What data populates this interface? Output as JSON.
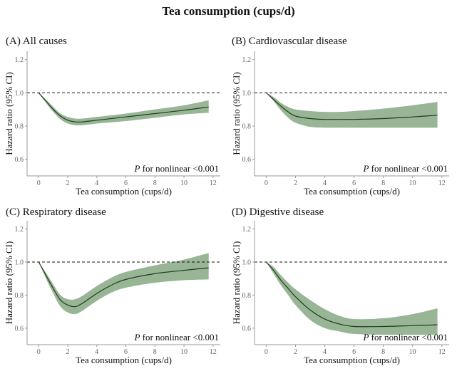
{
  "chart_data": {
    "title": "Tea consumption (cups/d)",
    "panels": [
      {
        "type": "line",
        "title": "(A) All causes",
        "xlabel": "Tea consumption (cups/d)",
        "ylabel": "Hazard ratio (95% CI)",
        "annotation": {
          "italic": "P",
          "rest": " for nonlinear <0.001"
        },
        "xlim": [
          -0.8,
          12.5
        ],
        "ylim": [
          0.5,
          1.25
        ],
        "xticks": [
          0,
          2,
          4,
          6,
          8,
          10,
          12
        ],
        "yticks": [
          0.6,
          0.8,
          1.0,
          1.2
        ],
        "ytick_labels": [
          "0.6",
          "0.8",
          "1.0",
          "1.2"
        ],
        "reference_line": 1.0,
        "x": [
          0,
          0.5,
          1,
          1.5,
          2,
          2.5,
          3,
          4,
          6,
          8,
          10,
          11.7
        ],
        "y": [
          1.0,
          0.95,
          0.9,
          0.86,
          0.835,
          0.825,
          0.825,
          0.835,
          0.855,
          0.875,
          0.895,
          0.915
        ],
        "lower": [
          1.0,
          0.94,
          0.885,
          0.84,
          0.815,
          0.805,
          0.805,
          0.815,
          0.83,
          0.85,
          0.87,
          0.88
        ],
        "upper": [
          1.0,
          0.96,
          0.915,
          0.875,
          0.855,
          0.845,
          0.845,
          0.855,
          0.875,
          0.9,
          0.925,
          0.955
        ]
      },
      {
        "type": "line",
        "title": "(B) Cardiovascular disease",
        "xlabel": "Tea consumption (cups/d)",
        "ylabel": "Hazard ratio (95% CI)",
        "annotation": {
          "italic": "P",
          "rest": " for nonlinear <0.001"
        },
        "xlim": [
          -0.8,
          12.5
        ],
        "ylim": [
          0.5,
          1.25
        ],
        "xticks": [
          0,
          2,
          4,
          6,
          8,
          10,
          12
        ],
        "yticks": [
          0.6,
          0.8,
          1.0,
          1.2
        ],
        "ytick_labels": [
          "0.6",
          "0.8",
          "1.0",
          "1.2"
        ],
        "reference_line": 1.0,
        "x": [
          0,
          0.5,
          1,
          1.5,
          2,
          3,
          4,
          5,
          6,
          8,
          10,
          11.7
        ],
        "y": [
          1.0,
          0.96,
          0.92,
          0.885,
          0.86,
          0.845,
          0.84,
          0.84,
          0.84,
          0.845,
          0.855,
          0.865
        ],
        "lower": [
          1.0,
          0.95,
          0.895,
          0.85,
          0.82,
          0.795,
          0.79,
          0.79,
          0.79,
          0.79,
          0.79,
          0.79
        ],
        "upper": [
          1.0,
          0.975,
          0.94,
          0.915,
          0.9,
          0.89,
          0.885,
          0.885,
          0.89,
          0.905,
          0.925,
          0.945
        ]
      },
      {
        "type": "line",
        "title": "(C) Respiratory disease",
        "xlabel": "Tea consumption (cups/d)",
        "ylabel": "Hazard ratio (95% CI)",
        "annotation": {
          "italic": "P",
          "rest": " for nonlinear <0.001"
        },
        "xlim": [
          -0.8,
          12.5
        ],
        "ylim": [
          0.5,
          1.25
        ],
        "xticks": [
          0,
          2,
          4,
          6,
          8,
          10,
          12
        ],
        "yticks": [
          0.6,
          0.8,
          1.0,
          1.2
        ],
        "ytick_labels": [
          "0.6",
          "0.8",
          "1.0",
          "1.2"
        ],
        "reference_line": 1.0,
        "x": [
          0,
          0.5,
          1,
          1.5,
          2,
          2.5,
          3,
          4,
          5,
          6,
          8,
          10,
          11.7
        ],
        "y": [
          1.0,
          0.92,
          0.84,
          0.77,
          0.74,
          0.73,
          0.75,
          0.81,
          0.86,
          0.895,
          0.93,
          0.95,
          0.965
        ],
        "lower": [
          1.0,
          0.9,
          0.81,
          0.73,
          0.695,
          0.685,
          0.705,
          0.765,
          0.815,
          0.845,
          0.875,
          0.89,
          0.895
        ],
        "upper": [
          1.0,
          0.935,
          0.865,
          0.8,
          0.775,
          0.775,
          0.795,
          0.855,
          0.905,
          0.94,
          0.98,
          1.015,
          1.055
        ]
      },
      {
        "type": "line",
        "title": "(D) Digestive disease",
        "xlabel": "Tea consumption (cups/d)",
        "ylabel": "Hazard ratio (95% CI)",
        "annotation": {
          "italic": "P",
          "rest": " for nonlinear <0.001"
        },
        "xlim": [
          -0.8,
          12.5
        ],
        "ylim": [
          0.5,
          1.25
        ],
        "xticks": [
          0,
          2,
          4,
          6,
          8,
          10,
          12
        ],
        "yticks": [
          0.6,
          0.8,
          1.0,
          1.2
        ],
        "ytick_labels": [
          "0.6",
          "0.8",
          "1.0",
          "1.2"
        ],
        "reference_line": 1.0,
        "x": [
          0,
          0.5,
          1,
          1.5,
          2,
          3,
          4,
          5,
          6,
          8,
          10,
          11.7
        ],
        "y": [
          1.0,
          0.95,
          0.89,
          0.84,
          0.79,
          0.71,
          0.655,
          0.625,
          0.61,
          0.61,
          0.615,
          0.62
        ],
        "lower": [
          1.0,
          0.93,
          0.86,
          0.8,
          0.74,
          0.65,
          0.6,
          0.58,
          0.565,
          0.56,
          0.56,
          0.56
        ],
        "upper": [
          1.0,
          0.97,
          0.92,
          0.875,
          0.835,
          0.77,
          0.715,
          0.675,
          0.655,
          0.66,
          0.685,
          0.72
        ]
      }
    ]
  }
}
